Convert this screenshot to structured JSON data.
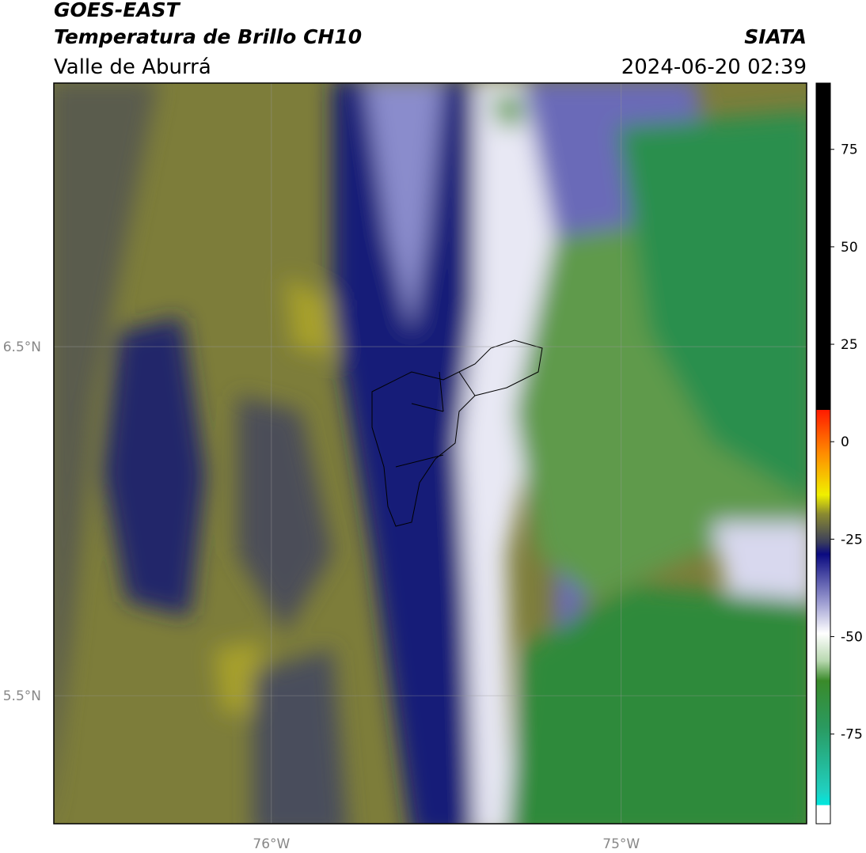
{
  "title": "GOES-EAST",
  "subtitle": "Temperatura de Brillo CH10",
  "region": "Valle de Aburrá",
  "source": "SIATA",
  "datetime": "2024-06-20 02:39",
  "map": {
    "xlim": [
      -76.622,
      -74.47
    ],
    "ylim": [
      5.133,
      7.255
    ],
    "xticks": [
      {
        "value": -76,
        "label": "76°W"
      },
      {
        "value": -75,
        "label": "75°W"
      }
    ],
    "yticks": [
      {
        "value": 6.5,
        "label": "6.5°N"
      },
      {
        "value": 5.5,
        "label": "5.5°N"
      }
    ],
    "grid": true
  },
  "colorbar": {
    "lim": [
      -98,
      92
    ],
    "ticks": [
      75,
      50,
      25,
      0,
      -25,
      -50,
      -75
    ]
  }
}
